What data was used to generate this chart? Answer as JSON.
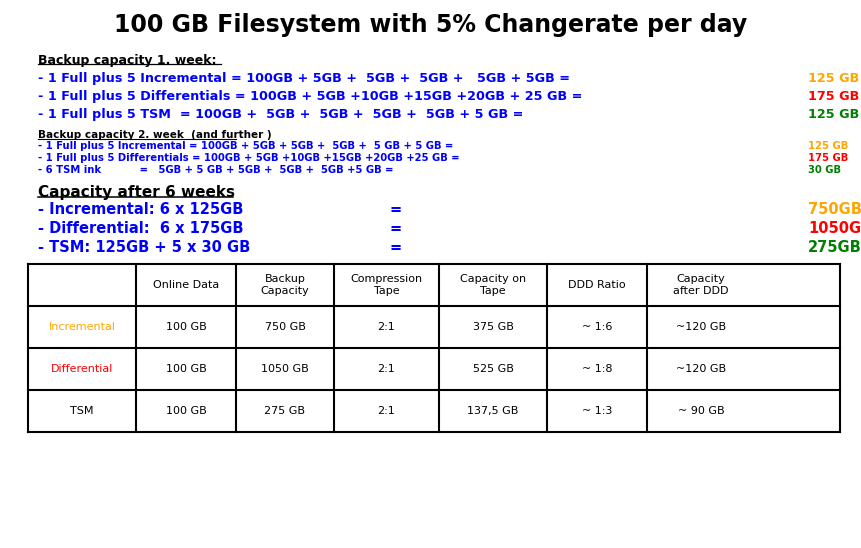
{
  "title": "100 GB Filesystem with 5% Changerate per day",
  "title_fontsize": 17,
  "background_color": "#ffffff",
  "blue": "#0000FF",
  "orange": "#FFA500",
  "red": "#FF0000",
  "green": "#008000",
  "black": "#000000",
  "section1_header": "Backup capacity 1. week:",
  "line1_blue": "- 1 Full plus 5 Incremental = 100GB + 5GB +  5GB +  5GB +   5GB + 5GB = ",
  "line1_orange": "125 GB",
  "line2_blue": "- 1 Full plus 5 Differentials = 100GB + 5GB +10GB +15GB +20GB + 25 GB = ",
  "line2_red": "175 GB",
  "line3_blue": "- 1 Full plus 5 TSM  = 100GB +  5GB +  5GB +  5GB +  5GB + 5 GB = ",
  "line3_green": "125 GB",
  "section2_header": "Backup capacity 2. week  (and further )",
  "s2_line1_blue": "- 1 Full plus 5 Incremental = 100GB + 5GB + 5GB +  5GB +  5 GB + 5 GB = ",
  "s2_line1_orange": "125 GB",
  "s2_line2_blue": "- 1 Full plus 5 Differentials = 100GB + 5GB +10GB +15GB +20GB +25 GB = ",
  "s2_line2_red": "175 GB",
  "s2_line3_blue": "- 6 TSM ink           =   5GB + 5 GB + 5GB +  5GB +  5GB +5 GB = ",
  "s2_line3_green": "30 GB",
  "section3_header": "Capacity after 6 weeks",
  "s3_line1_blue": "- Incremental: 6 x 125GB",
  "s3_line1_eq": "=",
  "s3_line1_orange": "750GB",
  "s3_line2_blue": "- Differential:  6 x 175GB",
  "s3_line2_eq": "=",
  "s3_line2_red": "1050GB",
  "s3_line3_blue": "- TSM: 125GB + 5 x 30 GB",
  "s3_line3_eq": "=",
  "s3_line3_green": "275GB",
  "table_headers": [
    "",
    "Online Data",
    "Backup\nCapacity",
    "Compression\nTape",
    "Capacity on\nTape",
    "DDD Ratio",
    "Capacity\nafter DDD"
  ],
  "table_rows": [
    [
      "Incremental",
      "100 GB",
      "750 GB",
      "2:1",
      "375 GB",
      "~ 1:6",
      "~120 GB"
    ],
    [
      "Differential",
      "100 GB",
      "1050 GB",
      "2:1",
      "525 GB",
      "~ 1:8",
      "~120 GB"
    ],
    [
      "TSM",
      "100 GB",
      "275 GB",
      "2:1",
      "137,5 GB",
      "~ 1:3",
      "~ 90 GB"
    ]
  ],
  "table_row_colors": [
    "#FFA500",
    "#FF0000",
    "#000000"
  ],
  "fig_width": 8.62,
  "fig_height": 5.48,
  "dpi": 100
}
